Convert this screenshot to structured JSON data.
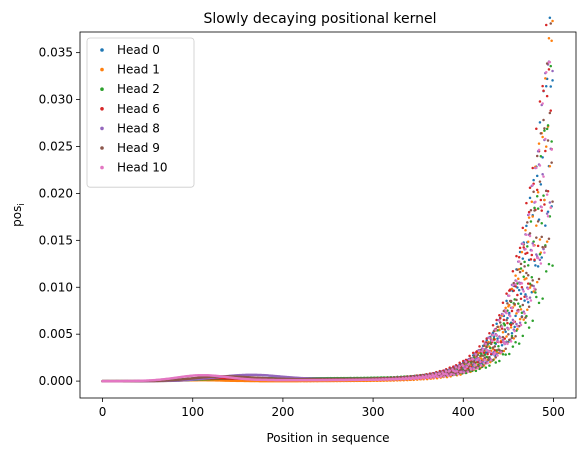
{
  "chart_data": {
    "type": "scatter",
    "title": "Slowly decaying positional kernel",
    "xlabel": "Position in sequence",
    "ylabel": "pos",
    "ylabel_subscript": "i",
    "xlim": [
      -25,
      525
    ],
    "ylim": [
      -0.0018,
      0.0372
    ],
    "xticks": [
      0,
      100,
      200,
      300,
      400,
      500
    ],
    "yticks": [
      0.0,
      0.005,
      0.01,
      0.015,
      0.02,
      0.025,
      0.03,
      0.035
    ],
    "ytick_labels": [
      "0.000",
      "0.005",
      "0.010",
      "0.015",
      "0.020",
      "0.025",
      "0.030",
      "0.035"
    ],
    "grid": false,
    "legend": "top-left",
    "n_points": 500,
    "series": [
      {
        "name": "Head 0",
        "color": "#1f77b4",
        "bump_center": 120,
        "bump_width": 40,
        "bump_height": 0.0003,
        "plateau": 0.0002,
        "end_value": 0.031
      },
      {
        "name": "Head 1",
        "color": "#ff7f0e",
        "bump_center": 110,
        "bump_width": 35,
        "bump_height": 0.0001,
        "plateau": 0.0,
        "end_value": 0.03
      },
      {
        "name": "Head 2",
        "color": "#2ca02c",
        "bump_center": 120,
        "bump_width": 45,
        "bump_height": 0.0001,
        "plateau": 0.0003,
        "end_value": 0.024
      },
      {
        "name": "Head 6",
        "color": "#d62728",
        "bump_center": 120,
        "bump_width": 40,
        "bump_height": 0.0002,
        "plateau": 0.0002,
        "end_value": 0.0355
      },
      {
        "name": "Head 8",
        "color": "#9467bd",
        "bump_center": 160,
        "bump_width": 50,
        "bump_height": 0.0005,
        "plateau": 0.0002,
        "end_value": 0.031
      },
      {
        "name": "Head 9",
        "color": "#8c564b",
        "bump_center": 130,
        "bump_width": 45,
        "bump_height": 0.0004,
        "plateau": 0.0002,
        "end_value": 0.029
      },
      {
        "name": "Head 10",
        "color": "#e377c2",
        "bump_center": 110,
        "bump_width": 40,
        "bump_height": 0.0006,
        "plateau": 0.0001,
        "end_value": 0.03
      }
    ]
  }
}
